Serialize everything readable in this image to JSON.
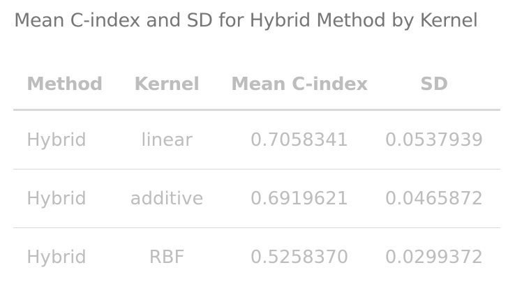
{
  "caption": "Mean C-index and SD for Hybrid Method by Kernel",
  "table": {
    "headers": [
      "Method",
      "Kernel",
      "Mean C-index",
      "SD"
    ],
    "rows": [
      [
        "Hybrid",
        "linear",
        "0.7058341",
        "0.0537939"
      ],
      [
        "Hybrid",
        "additive",
        "0.6919621",
        "0.0465872"
      ],
      [
        "Hybrid",
        "RBF",
        "0.5258370",
        "0.0299372"
      ]
    ]
  },
  "colors": {
    "caption_text": "#767676",
    "cell_text": "#bdbdbd",
    "rule": "#d9d9d9"
  }
}
